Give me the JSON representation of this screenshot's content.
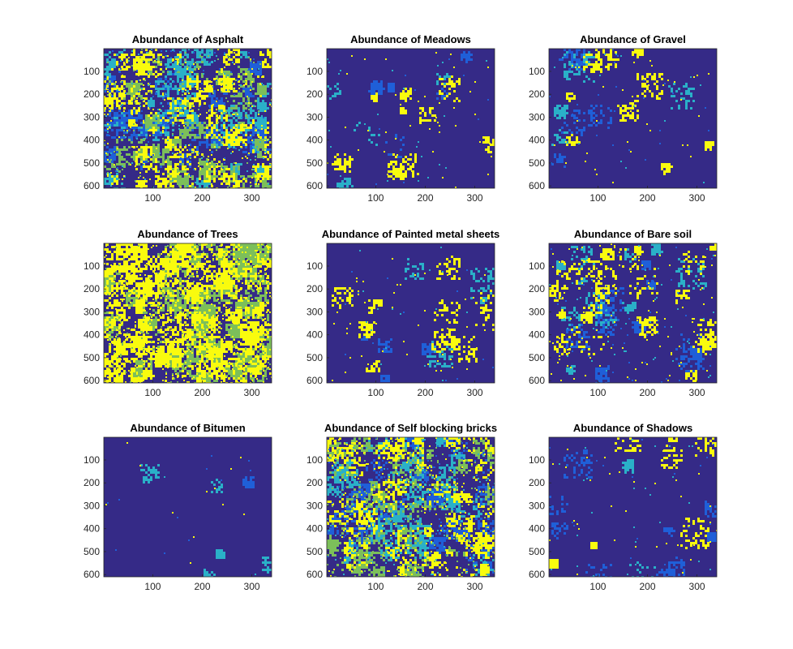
{
  "chart_data": [
    {
      "type": "heatmap",
      "title": "Abundance of Asphalt",
      "xlim": [
        1,
        340
      ],
      "ylim": [
        1,
        610
      ],
      "xticks": [
        100,
        200,
        300
      ],
      "yticks": [
        100,
        200,
        300,
        400,
        500,
        600
      ],
      "colormap": "parula",
      "scene": "mixed-high"
    },
    {
      "type": "heatmap",
      "title": "Abundance of Meadows",
      "xlim": [
        1,
        340
      ],
      "ylim": [
        1,
        610
      ],
      "xticks": [
        100,
        200,
        300
      ],
      "yticks": [
        100,
        200,
        300,
        400,
        500,
        600
      ],
      "colormap": "parula",
      "scene": "sparse"
    },
    {
      "type": "heatmap",
      "title": "Abundance of Gravel",
      "xlim": [
        1,
        340
      ],
      "ylim": [
        1,
        610
      ],
      "xticks": [
        100,
        200,
        300
      ],
      "yticks": [
        100,
        200,
        300,
        400,
        500,
        600
      ],
      "colormap": "parula",
      "scene": "sparse"
    },
    {
      "type": "heatmap",
      "title": "Abundance of Trees",
      "xlim": [
        1,
        340
      ],
      "ylim": [
        1,
        610
      ],
      "xticks": [
        100,
        200,
        300
      ],
      "yticks": [
        100,
        200,
        300,
        400,
        500,
        600
      ],
      "colormap": "parula",
      "scene": "dense-yellow"
    },
    {
      "type": "heatmap",
      "title": "Abundance of Painted metal sheets",
      "xlim": [
        1,
        340
      ],
      "ylim": [
        1,
        610
      ],
      "xticks": [
        100,
        200,
        300
      ],
      "yticks": [
        100,
        200,
        300,
        400,
        500,
        600
      ],
      "colormap": "parula",
      "scene": "sparse"
    },
    {
      "type": "heatmap",
      "title": "Abundance of Bare soil",
      "xlim": [
        1,
        340
      ],
      "ylim": [
        1,
        610
      ],
      "xticks": [
        100,
        200,
        300
      ],
      "yticks": [
        100,
        200,
        300,
        400,
        500,
        600
      ],
      "colormap": "parula",
      "scene": "medium"
    },
    {
      "type": "heatmap",
      "title": "Abundance of Bitumen",
      "xlim": [
        1,
        340
      ],
      "ylim": [
        1,
        610
      ],
      "xticks": [
        100,
        200,
        300
      ],
      "yticks": [
        100,
        200,
        300,
        400,
        500,
        600
      ],
      "colormap": "parula",
      "scene": "very-sparse"
    },
    {
      "type": "heatmap",
      "title": "Abundance of Self blocking bricks",
      "xlim": [
        1,
        340
      ],
      "ylim": [
        1,
        610
      ],
      "xticks": [
        100,
        200,
        300
      ],
      "yticks": [
        100,
        200,
        300,
        400,
        500,
        600
      ],
      "colormap": "parula",
      "scene": "mixed-high"
    },
    {
      "type": "heatmap",
      "title": "Abundance of Shadows",
      "xlim": [
        1,
        340
      ],
      "ylim": [
        1,
        610
      ],
      "xticks": [
        100,
        200,
        300
      ],
      "yticks": [
        100,
        200,
        300,
        400,
        500,
        600
      ],
      "colormap": "parula",
      "scene": "sparse"
    }
  ],
  "colors": {
    "background": "#352a87",
    "low": "#352a87",
    "mid_blue": "#1f5fd8",
    "cyan": "#2ab0c8",
    "green": "#7cbf5a",
    "yellow": "#f9fb0e",
    "axis": "#262626",
    "tick_text": "#262626"
  }
}
